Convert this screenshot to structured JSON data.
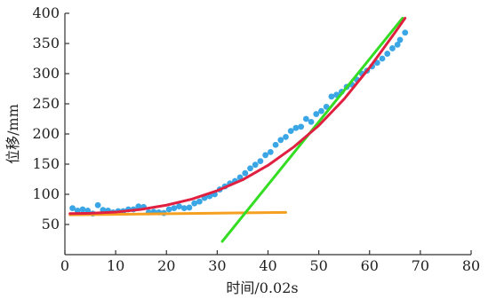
{
  "chart_data": {
    "type": "scatter",
    "xlabel": "时间/0.02s",
    "ylabel": "位移/mm",
    "xlim": [
      0,
      80
    ],
    "ylim": [
      0,
      400
    ],
    "xticks": [
      0,
      10,
      20,
      30,
      40,
      50,
      60,
      70,
      80
    ],
    "yticks": [
      50,
      100,
      150,
      200,
      250,
      300,
      350,
      400
    ],
    "grid": false,
    "series": [
      {
        "kind": "scatter",
        "color": "#3aa6e6",
        "points": [
          [
            1.5,
            77
          ],
          [
            2.5,
            73
          ],
          [
            3.5,
            75
          ],
          [
            4.5,
            73
          ],
          [
            5.5,
            68
          ],
          [
            6.5,
            82
          ],
          [
            7.5,
            74
          ],
          [
            8.5,
            73
          ],
          [
            9.5,
            70
          ],
          [
            10.5,
            72
          ],
          [
            11.5,
            72
          ],
          [
            12.5,
            75
          ],
          [
            13.5,
            75
          ],
          [
            14.5,
            80
          ],
          [
            15.5,
            79
          ],
          [
            16.5,
            70
          ],
          [
            17.5,
            71
          ],
          [
            18.5,
            70
          ],
          [
            19.5,
            69
          ],
          [
            20.5,
            75
          ],
          [
            21.5,
            77
          ],
          [
            22.5,
            80
          ],
          [
            23.5,
            77
          ],
          [
            24.5,
            78
          ],
          [
            25.5,
            85
          ],
          [
            26.5,
            88
          ],
          [
            27.5,
            94
          ],
          [
            28.5,
            97
          ],
          [
            29.5,
            100
          ],
          [
            30.5,
            108
          ],
          [
            31.5,
            113
          ],
          [
            32.5,
            118
          ],
          [
            33.5,
            122
          ],
          [
            34.5,
            128
          ],
          [
            35.5,
            135
          ],
          [
            36.5,
            143
          ],
          [
            37.5,
            149
          ],
          [
            38.5,
            155
          ],
          [
            39.5,
            165
          ],
          [
            40.5,
            170
          ],
          [
            41.5,
            182
          ],
          [
            42.5,
            190
          ],
          [
            43.5,
            195
          ],
          [
            44.5,
            205
          ],
          [
            45.5,
            210
          ],
          [
            46.5,
            212
          ],
          [
            47.5,
            225
          ],
          [
            48.5,
            220
          ],
          [
            49.5,
            233
          ],
          [
            50.5,
            238
          ],
          [
            51.5,
            245
          ],
          [
            52.5,
            262
          ],
          [
            53.5,
            265
          ],
          [
            54.5,
            270
          ],
          [
            55.5,
            278
          ],
          [
            56.5,
            282
          ],
          [
            57.5,
            290
          ],
          [
            58.5,
            300
          ],
          [
            59.5,
            305
          ],
          [
            60.5,
            312
          ],
          [
            61.5,
            318
          ],
          [
            62.5,
            325
          ],
          [
            63.5,
            333
          ],
          [
            64.5,
            342
          ],
          [
            65.5,
            348
          ],
          [
            66,
            356
          ],
          [
            67,
            368
          ]
        ]
      },
      {
        "kind": "curve",
        "color": "#e02040",
        "points": [
          [
            1,
            68
          ],
          [
            5,
            68.5
          ],
          [
            10,
            70.5
          ],
          [
            15,
            75
          ],
          [
            20,
            82
          ],
          [
            25,
            92
          ],
          [
            30,
            106
          ],
          [
            35,
            124
          ],
          [
            40,
            148
          ],
          [
            45,
            178
          ],
          [
            50,
            214
          ],
          [
            55,
            258
          ],
          [
            60,
            310
          ],
          [
            65,
            368
          ],
          [
            67,
            392
          ]
        ]
      },
      {
        "kind": "line",
        "color": "#f5a020",
        "points": [
          [
            1,
            66
          ],
          [
            43.5,
            70
          ]
        ]
      },
      {
        "kind": "line",
        "color": "#33dd22",
        "points": [
          [
            31,
            22
          ],
          [
            66.5,
            392
          ]
        ]
      }
    ]
  }
}
